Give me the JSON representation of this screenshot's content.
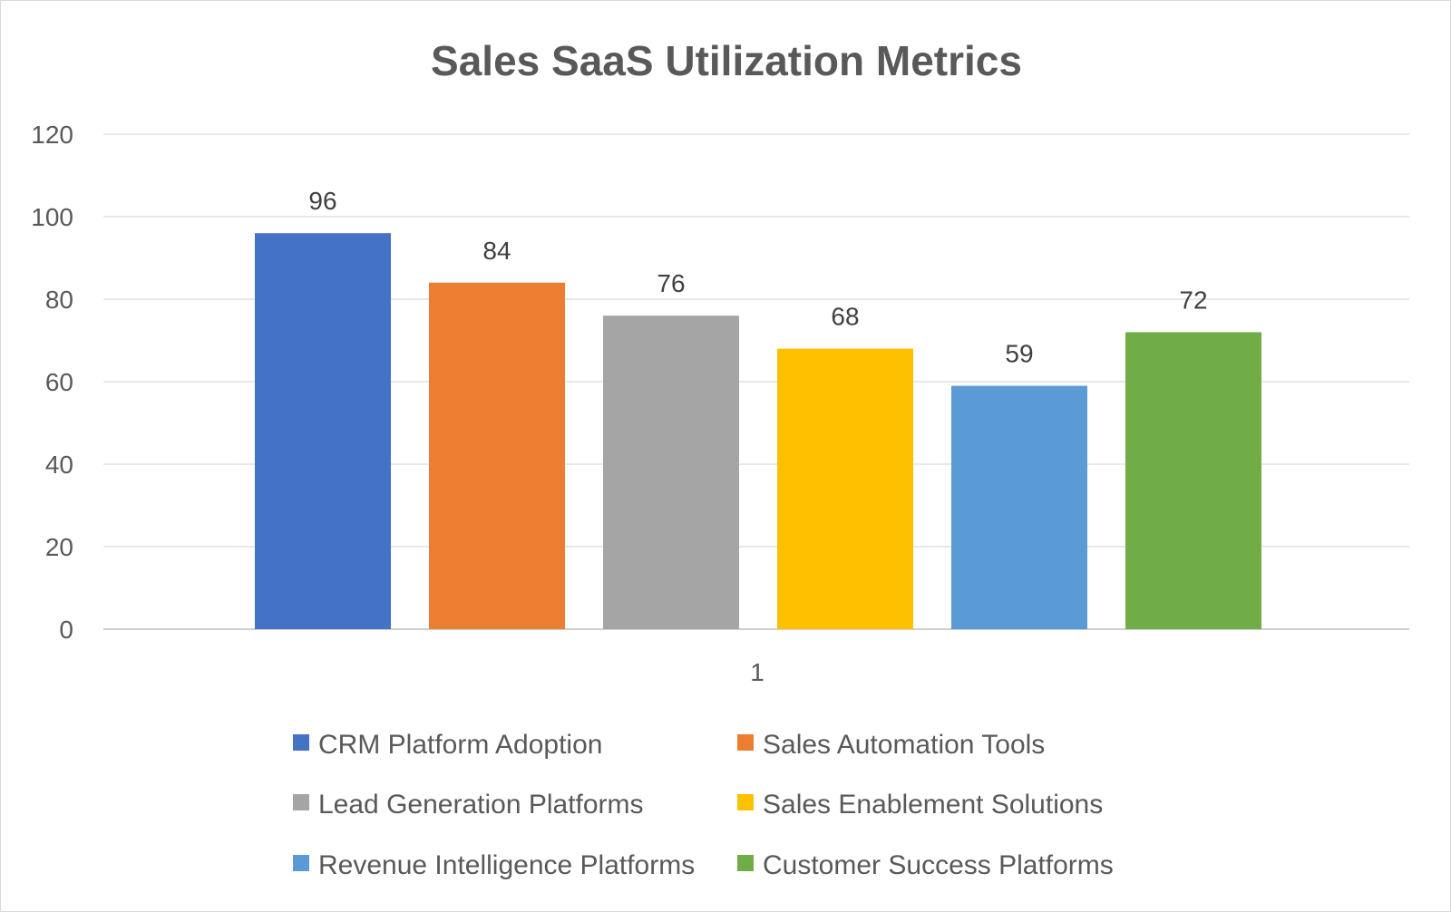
{
  "chart_data": {
    "type": "bar",
    "title": "Sales SaaS Utilization Metrics",
    "categories": [
      "1"
    ],
    "ylim": [
      0,
      120
    ],
    "yticks": [
      0,
      20,
      40,
      60,
      80,
      100,
      120
    ],
    "grid": true,
    "legend_position": "bottom",
    "series": [
      {
        "name": "CRM Platform Adoption",
        "values": [
          96
        ],
        "color": "#4472C4"
      },
      {
        "name": "Sales Automation Tools",
        "values": [
          84
        ],
        "color": "#ED7D31"
      },
      {
        "name": "Lead Generation Platforms",
        "values": [
          76
        ],
        "color": "#A5A5A5"
      },
      {
        "name": "Sales Enablement Solutions",
        "values": [
          68
        ],
        "color": "#FFC000"
      },
      {
        "name": "Revenue Intelligence Platforms",
        "values": [
          59
        ],
        "color": "#5B9BD5"
      },
      {
        "name": "Customer Success Platforms",
        "values": [
          72
        ],
        "color": "#70AD47"
      }
    ]
  }
}
